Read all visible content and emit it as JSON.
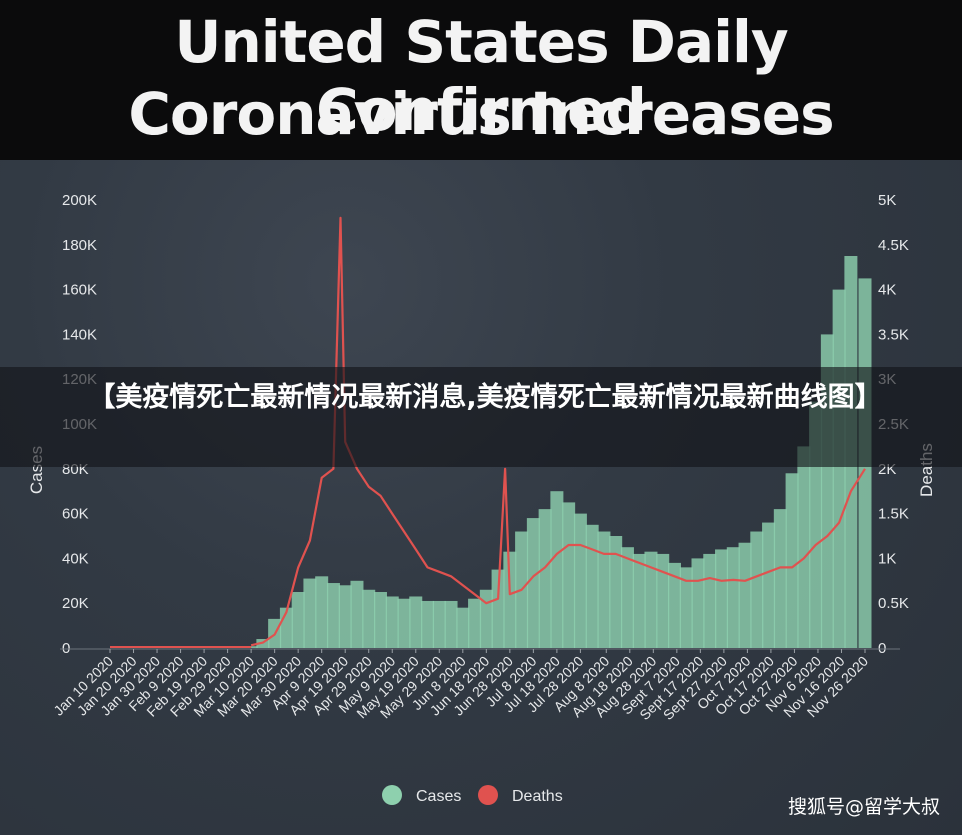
{
  "header": {
    "title_line1": "United States Daily Confirmed",
    "title_line2": "Coronavirus Increases"
  },
  "overlay": {
    "text": "【美疫情死亡最新情况最新消息,美疫情死亡最新情况最新曲线图】"
  },
  "watermark": "搜狐号@留学大叔",
  "colors": {
    "cases": "#8ed0ae",
    "deaths": "#e0524f",
    "background": "#2f3640",
    "header": "#0b0b0c"
  },
  "chart_data": {
    "type": "bar+line",
    "title": "United States Daily Confirmed Coronavirus Increases",
    "ylabel_left": "Cases",
    "ylabel_right": "Deaths",
    "ylim_left": [
      0,
      200000
    ],
    "ylim_right": [
      0,
      5000
    ],
    "yticks_left": [
      "0",
      "20K",
      "40K",
      "60K",
      "80K",
      "100K",
      "120K",
      "140K",
      "160K",
      "180K",
      "200K"
    ],
    "yticks_right": [
      "0",
      "0.5K",
      "1K",
      "1.5K",
      "2K",
      "2.5K",
      "3K",
      "3.5K",
      "4K",
      "4.5K",
      "5K"
    ],
    "x_ticks": [
      "Jan 10 2020",
      "Jan 20 2020",
      "Jan 30 2020",
      "Feb 9 2020",
      "Feb 19 2020",
      "Feb 29 2020",
      "Mar 10 2020",
      "Mar 20 2020",
      "Mar 30 2020",
      "Apr 9 2020",
      "Apr 19 2020",
      "Apr 29 2020",
      "May 9 2020",
      "May 19 2020",
      "May 29 2020",
      "Jun 8 2020",
      "Jun 18 2020",
      "Jun 28 2020",
      "Jul 8 2020",
      "Jul 18 2020",
      "Jul 28 2020",
      "Aug 8 2020",
      "Aug 18 2020",
      "Aug 28 2020",
      "Sept 7 2020",
      "Sept 17 2020",
      "Sept 27 2020",
      "Oct 7 2020",
      "Oct 17 2020",
      "Oct 27 2020",
      "Nov 6 2020",
      "Nov 16 2020",
      "Nov 26 2020"
    ],
    "legend": [
      "Cases",
      "Deaths"
    ],
    "legend_position": "bottom-center",
    "grid": false,
    "series": [
      {
        "name": "Cases",
        "axis": "left",
        "style": "bar",
        "dates": [
          "Mar 10 2020",
          "Mar 15 2020",
          "Mar 20 2020",
          "Mar 25 2020",
          "Mar 30 2020",
          "Apr 4 2020",
          "Apr 9 2020",
          "Apr 14 2020",
          "Apr 19 2020",
          "Apr 24 2020",
          "Apr 29 2020",
          "May 4 2020",
          "May 9 2020",
          "May 14 2020",
          "May 19 2020",
          "May 24 2020",
          "May 29 2020",
          "Jun 3 2020",
          "Jun 8 2020",
          "Jun 13 2020",
          "Jun 18 2020",
          "Jun 23 2020",
          "Jun 28 2020",
          "Jul 3 2020",
          "Jul 8 2020",
          "Jul 13 2020",
          "Jul 18 2020",
          "Jul 23 2020",
          "Jul 28 2020",
          "Aug 2 2020",
          "Aug 7 2020",
          "Aug 12 2020",
          "Aug 17 2020",
          "Aug 22 2020",
          "Aug 27 2020",
          "Sept 1 2020",
          "Sept 6 2020",
          "Sept 11 2020",
          "Sept 16 2020",
          "Sept 21 2020",
          "Sept 26 2020",
          "Oct 1 2020",
          "Oct 6 2020",
          "Oct 11 2020",
          "Oct 16 2020",
          "Oct 21 2020",
          "Oct 26 2020",
          "Oct 31 2020",
          "Nov 5 2020",
          "Nov 10 2020",
          "Nov 15 2020",
          "Nov 20 2020",
          "Nov 26 2020"
        ],
        "values": [
          800,
          4000,
          13000,
          18000,
          25000,
          31000,
          32000,
          29000,
          28000,
          30000,
          26000,
          25000,
          23000,
          22000,
          23000,
          21000,
          21000,
          21000,
          18000,
          22000,
          26000,
          35000,
          43000,
          52000,
          58000,
          62000,
          70000,
          65000,
          60000,
          55000,
          52000,
          50000,
          45000,
          42000,
          43000,
          42000,
          38000,
          36000,
          40000,
          42000,
          44000,
          45000,
          47000,
          52000,
          56000,
          62000,
          78000,
          90000,
          110000,
          140000,
          160000,
          175000,
          165000
        ]
      },
      {
        "name": "Deaths",
        "axis": "right",
        "style": "line",
        "dates": [
          "Mar 10 2020",
          "Mar 15 2020",
          "Mar 20 2020",
          "Mar 25 2020",
          "Mar 30 2020",
          "Apr 4 2020",
          "Apr 9 2020",
          "Apr 14 2020",
          "Apr 17 2020",
          "Apr 19 2020",
          "Apr 24 2020",
          "Apr 29 2020",
          "May 4 2020",
          "May 9 2020",
          "May 14 2020",
          "May 19 2020",
          "May 24 2020",
          "May 29 2020",
          "Jun 3 2020",
          "Jun 8 2020",
          "Jun 13 2020",
          "Jun 18 2020",
          "Jun 23 2020",
          "Jun 26 2020",
          "Jun 28 2020",
          "Jul 3 2020",
          "Jul 8 2020",
          "Jul 13 2020",
          "Jul 18 2020",
          "Jul 23 2020",
          "Jul 28 2020",
          "Aug 2 2020",
          "Aug 7 2020",
          "Aug 12 2020",
          "Aug 17 2020",
          "Aug 22 2020",
          "Aug 27 2020",
          "Sept 1 2020",
          "Sept 6 2020",
          "Sept 11 2020",
          "Sept 16 2020",
          "Sept 21 2020",
          "Sept 26 2020",
          "Oct 1 2020",
          "Oct 6 2020",
          "Oct 11 2020",
          "Oct 16 2020",
          "Oct 21 2020",
          "Oct 26 2020",
          "Oct 31 2020",
          "Nov 5 2020",
          "Nov 10 2020",
          "Nov 15 2020",
          "Nov 20 2020",
          "Nov 26 2020"
        ],
        "values": [
          30,
          60,
          150,
          400,
          900,
          1200,
          1900,
          2000,
          4800,
          2300,
          2000,
          1800,
          1700,
          1500,
          1300,
          1100,
          900,
          850,
          800,
          700,
          600,
          500,
          550,
          2000,
          600,
          650,
          800,
          900,
          1050,
          1150,
          1150,
          1100,
          1050,
          1050,
          1000,
          950,
          900,
          850,
          800,
          750,
          750,
          780,
          750,
          760,
          750,
          800,
          850,
          900,
          900,
          1000,
          1150,
          1250,
          1400,
          1750,
          2000
        ]
      }
    ]
  }
}
